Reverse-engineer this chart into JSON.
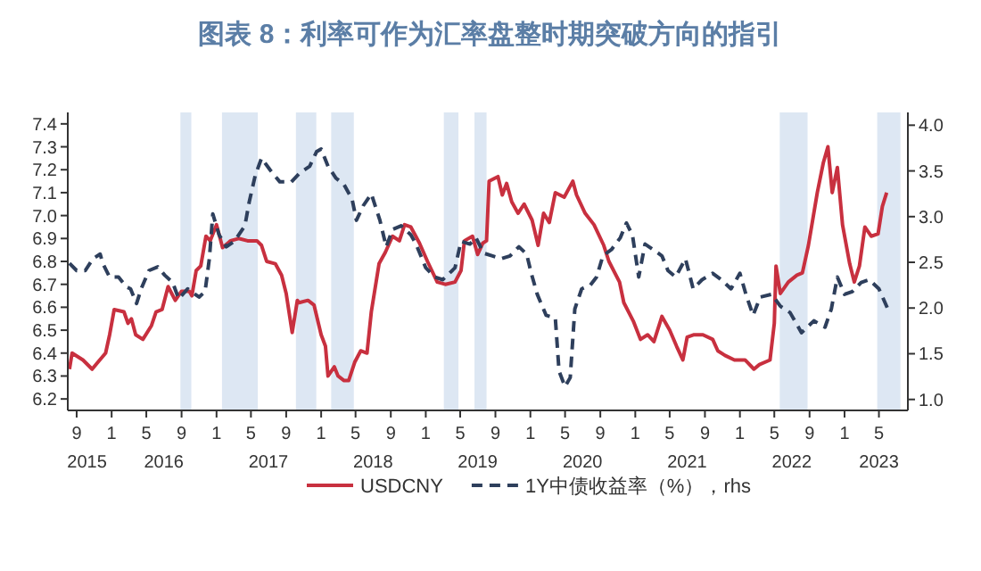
{
  "chart_data": {
    "type": "line",
    "title": "图表 8：利率可作为汇率盘整时期突破方向的指引",
    "xlim": [
      "2015-08-01",
      "2023-08-10"
    ],
    "xticks": [
      {
        "value": "2015-09-01",
        "label": "9"
      },
      {
        "value": "2016-01-01",
        "label": "1"
      },
      {
        "value": "2016-05-01",
        "label": "5"
      },
      {
        "value": "2016-09-01",
        "label": "9"
      },
      {
        "value": "2017-01-01",
        "label": "1"
      },
      {
        "value": "2017-05-01",
        "label": "5"
      },
      {
        "value": "2017-09-01",
        "label": "9"
      },
      {
        "value": "2018-01-01",
        "label": "1"
      },
      {
        "value": "2018-05-01",
        "label": "5"
      },
      {
        "value": "2018-09-01",
        "label": "9"
      },
      {
        "value": "2019-01-01",
        "label": "1"
      },
      {
        "value": "2019-05-01",
        "label": "5"
      },
      {
        "value": "2019-09-01",
        "label": "9"
      },
      {
        "value": "2020-01-01",
        "label": "1"
      },
      {
        "value": "2020-05-01",
        "label": "5"
      },
      {
        "value": "2020-09-01",
        "label": "9"
      },
      {
        "value": "2021-01-01",
        "label": "1"
      },
      {
        "value": "2021-05-01",
        "label": "5"
      },
      {
        "value": "2021-09-01",
        "label": "9"
      },
      {
        "value": "2022-01-01",
        "label": "1"
      },
      {
        "value": "2022-05-01",
        "label": "5"
      },
      {
        "value": "2022-09-01",
        "label": "9"
      },
      {
        "value": "2023-01-01",
        "label": "1"
      },
      {
        "value": "2023-05-01",
        "label": "5"
      }
    ],
    "x2lim": [
      "2015-08-01",
      "2023-08-10"
    ],
    "x2ticks": [
      {
        "value": "2015-10-07",
        "label": "2015"
      },
      {
        "value": "2016-07-01",
        "label": "2016"
      },
      {
        "value": "2017-07-01",
        "label": "2017"
      },
      {
        "value": "2018-07-01",
        "label": "2018"
      },
      {
        "value": "2019-07-01",
        "label": "2019"
      },
      {
        "value": "2020-07-01",
        "label": "2020"
      },
      {
        "value": "2021-07-01",
        "label": "2021"
      },
      {
        "value": "2022-07-01",
        "label": "2022"
      },
      {
        "value": "2023-05-01",
        "label": "2023"
      }
    ],
    "ylim": [
      6.15,
      7.45
    ],
    "yticks": [
      6.2,
      6.3,
      6.4,
      6.5,
      6.6,
      6.7,
      6.8,
      6.9,
      {
        "value": 7,
        "label": "7.0"
      },
      7.1,
      7.2,
      7.3,
      7.4
    ],
    "y2lim": [
      0.88,
      4.14
    ],
    "y2ticks": [
      {
        "value": 1,
        "label": "1.0"
      },
      1.5,
      {
        "value": 2,
        "label": "2.0"
      },
      2.5,
      {
        "value": 3,
        "label": "3.0"
      },
      3.5,
      {
        "value": 4,
        "label": "4.0"
      }
    ],
    "grid": false,
    "legend": "bottom",
    "bands": [
      {
        "axis": "x",
        "from": "2016-08-28",
        "to": "2016-10-05",
        "color": "#dde7f3"
      },
      {
        "axis": "x",
        "from": "2017-01-20",
        "to": "2017-05-25",
        "color": "#dde7f3"
      },
      {
        "axis": "x",
        "from": "2017-10-05",
        "to": "2017-12-15",
        "color": "#dde7f3"
      },
      {
        "axis": "x",
        "from": "2018-02-05",
        "to": "2018-04-25",
        "color": "#dde7f3"
      },
      {
        "axis": "x",
        "from": "2019-03-05",
        "to": "2019-04-25",
        "color": "#dde7f3"
      },
      {
        "axis": "x",
        "from": "2019-06-20",
        "to": "2019-08-01",
        "color": "#dde7f3"
      },
      {
        "axis": "x",
        "from": "2022-05-20",
        "to": "2022-08-25",
        "color": "#dde7f3"
      },
      {
        "axis": "x",
        "from": "2023-04-25",
        "to": "2023-07-15",
        "color": "#dde7f3"
      }
    ],
    "series": [
      {
        "name": "USDCNY",
        "color": "#c8303f",
        "line_style": "solid",
        "x": [
          "2015-08-07",
          "2015-08-16",
          "2015-09-23",
          "2015-10-25",
          "2015-11-14",
          "2015-12-11",
          "2015-12-25",
          "2016-01-10",
          "2016-02-13",
          "2016-02-27",
          "2016-03-10",
          "2016-03-25",
          "2016-04-19",
          "2016-05-19",
          "2016-06-04",
          "2016-06-25",
          "2016-07-16",
          "2016-08-10",
          "2016-09-01",
          "2016-09-28",
          "2016-10-07",
          "2016-10-22",
          "2016-11-07",
          "2016-11-25",
          "2016-12-10",
          "2017-01-01",
          "2017-01-22",
          "2017-02-19",
          "2017-03-19",
          "2017-04-19",
          "2017-05-22",
          "2017-06-07",
          "2017-06-25",
          "2017-07-25",
          "2017-08-16",
          "2017-09-01",
          "2017-09-22",
          "2017-10-10",
          "2017-10-16",
          "2017-11-16",
          "2017-12-07",
          "2018-01-01",
          "2018-01-16",
          "2018-01-25",
          "2018-02-16",
          "2018-03-01",
          "2018-03-22",
          "2018-04-07",
          "2018-04-28",
          "2018-05-19",
          "2018-06-10",
          "2018-06-25",
          "2018-07-22",
          "2018-08-13",
          "2018-09-07",
          "2018-10-01",
          "2018-10-19",
          "2018-11-10",
          "2018-12-10",
          "2019-01-07",
          "2019-02-10",
          "2019-03-10",
          "2019-04-13",
          "2019-05-04",
          "2019-05-16",
          "2019-06-13",
          "2019-07-01",
          "2019-07-19",
          "2019-08-01",
          "2019-08-10",
          "2019-09-10",
          "2019-09-25",
          "2019-10-10",
          "2019-10-28",
          "2019-11-19",
          "2019-12-10",
          "2020-01-07",
          "2020-01-28",
          "2020-02-16",
          "2020-03-07",
          "2020-03-28",
          "2020-04-28",
          "2020-05-28",
          "2020-06-10",
          "2020-07-10",
          "2020-08-10",
          "2020-09-13",
          "2020-10-01",
          "2020-11-07",
          "2020-11-22",
          "2020-12-25",
          "2021-01-19",
          "2021-02-13",
          "2021-03-07",
          "2021-04-04",
          "2021-05-01",
          "2021-05-25",
          "2021-06-16",
          "2021-07-01",
          "2021-07-25",
          "2021-08-25",
          "2021-09-28",
          "2021-10-16",
          "2021-11-10",
          "2021-12-13",
          "2022-01-19",
          "2022-02-19",
          "2022-03-10",
          "2022-04-16",
          "2022-05-01",
          "2022-05-07",
          "2022-05-22",
          "2022-06-19",
          "2022-07-19",
          "2022-08-07",
          "2022-08-28",
          "2022-09-28",
          "2022-10-19",
          "2022-11-04",
          "2022-11-19",
          "2022-12-07",
          "2022-12-25",
          "2023-01-19",
          "2023-02-04",
          "2023-02-22",
          "2023-03-13",
          "2023-04-04",
          "2023-04-28",
          "2023-05-13",
          "2023-05-28"
        ],
        "values": [
          6.33,
          6.4,
          6.37,
          6.33,
          6.36,
          6.4,
          6.48,
          6.59,
          6.58,
          6.53,
          6.55,
          6.48,
          6.46,
          6.52,
          6.58,
          6.59,
          6.69,
          6.63,
          6.67,
          6.67,
          6.65,
          6.76,
          6.78,
          6.91,
          6.89,
          6.96,
          6.86,
          6.89,
          6.9,
          6.89,
          6.89,
          6.87,
          6.8,
          6.79,
          6.74,
          6.66,
          6.49,
          6.63,
          6.62,
          6.63,
          6.61,
          6.48,
          6.43,
          6.3,
          6.34,
          6.3,
          6.28,
          6.28,
          6.36,
          6.41,
          6.4,
          6.58,
          6.79,
          6.84,
          6.91,
          6.89,
          6.96,
          6.95,
          6.88,
          6.8,
          6.71,
          6.7,
          6.71,
          6.76,
          6.89,
          6.91,
          6.83,
          6.88,
          6.89,
          7.15,
          7.17,
          7.09,
          7.14,
          7.06,
          7.01,
          7.05,
          6.98,
          6.87,
          7.01,
          6.97,
          7.1,
          7.08,
          7.15,
          7.09,
          7.01,
          6.96,
          6.87,
          6.8,
          6.71,
          6.62,
          6.54,
          6.46,
          6.48,
          6.45,
          6.56,
          6.5,
          6.43,
          6.37,
          6.47,
          6.48,
          6.48,
          6.46,
          6.41,
          6.39,
          6.37,
          6.37,
          6.33,
          6.35,
          6.37,
          6.53,
          6.78,
          6.66,
          6.71,
          6.74,
          6.75,
          6.87,
          7.1,
          7.23,
          7.3,
          7.1,
          7.21,
          6.96,
          6.79,
          6.71,
          6.78,
          6.95,
          6.91,
          6.92,
          7.04,
          7.1
        ]
      },
      {
        "name": "1Y中债收益率（%），rhs",
        "color": "#2e3f5c",
        "axis": "y2",
        "line_style": "dashed",
        "x": [
          "2015-08-07",
          "2015-09-01",
          "2015-10-01",
          "2015-10-28",
          "2015-11-22",
          "2015-12-01",
          "2015-12-25",
          "2016-01-25",
          "2016-02-22",
          "2016-03-07",
          "2016-03-28",
          "2016-04-13",
          "2016-05-10",
          "2016-06-10",
          "2016-07-04",
          "2016-08-01",
          "2016-08-22",
          "2016-09-22",
          "2016-11-01",
          "2016-11-22",
          "2016-12-07",
          "2016-12-19",
          "2017-01-10",
          "2017-02-04",
          "2017-03-04",
          "2017-04-10",
          "2017-04-25",
          "2017-05-16",
          "2017-06-07",
          "2017-07-07",
          "2017-08-10",
          "2017-09-19",
          "2017-10-19",
          "2017-11-22",
          "2017-12-16",
          "2018-01-01",
          "2018-01-25",
          "2018-02-22",
          "2018-03-22",
          "2018-04-19",
          "2018-05-04",
          "2018-05-28",
          "2018-06-25",
          "2018-07-25",
          "2018-08-16",
          "2018-09-07",
          "2018-10-07",
          "2018-11-10",
          "2018-11-28",
          "2019-01-01",
          "2019-02-01",
          "2019-03-01",
          "2019-04-13",
          "2019-05-04",
          "2019-06-04",
          "2019-06-25",
          "2019-07-22",
          "2019-08-22",
          "2019-09-22",
          "2019-10-22",
          "2019-11-22",
          "2019-12-19",
          "2020-01-04",
          "2020-01-25",
          "2020-02-25",
          "2020-03-28",
          "2020-04-10",
          "2020-05-01",
          "2020-05-19",
          "2020-06-04",
          "2020-06-28",
          "2020-07-28",
          "2020-08-19",
          "2020-09-10",
          "2020-10-10",
          "2020-11-10",
          "2020-12-01",
          "2020-12-22",
          "2021-01-13",
          "2021-02-04",
          "2021-03-04",
          "2021-04-04",
          "2021-04-25",
          "2021-05-22",
          "2021-06-25",
          "2021-07-22",
          "2021-08-22",
          "2021-09-28",
          "2021-10-28",
          "2021-12-01",
          "2022-01-01",
          "2022-01-22",
          "2022-02-16",
          "2022-03-13",
          "2022-04-22",
          "2022-05-22",
          "2022-06-25",
          "2022-08-04",
          "2022-09-16",
          "2022-10-25",
          "2022-11-16",
          "2022-12-07",
          "2023-01-01",
          "2023-01-28",
          "2023-02-28",
          "2023-03-28",
          "2023-05-01",
          "2023-06-01"
        ],
        "values": [
          2.49,
          2.41,
          2.41,
          2.54,
          2.59,
          2.49,
          2.34,
          2.34,
          2.23,
          2.21,
          2.05,
          2.21,
          2.41,
          2.45,
          2.36,
          2.28,
          2.1,
          2.21,
          2.12,
          2.18,
          2.54,
          3.03,
          2.8,
          2.67,
          2.73,
          2.9,
          3.16,
          3.45,
          3.64,
          3.51,
          3.38,
          3.38,
          3.48,
          3.55,
          3.71,
          3.74,
          3.55,
          3.42,
          3.35,
          3.19,
          2.96,
          3.12,
          3.25,
          2.96,
          2.67,
          2.86,
          2.9,
          2.8,
          2.7,
          2.44,
          2.34,
          2.31,
          2.44,
          2.73,
          2.7,
          2.77,
          2.6,
          2.57,
          2.54,
          2.57,
          2.67,
          2.59,
          2.38,
          2.15,
          1.92,
          1.89,
          1.31,
          1.14,
          1.24,
          1.99,
          2.21,
          2.25,
          2.34,
          2.57,
          2.64,
          2.77,
          2.93,
          2.8,
          2.34,
          2.7,
          2.64,
          2.57,
          2.41,
          2.34,
          2.54,
          2.21,
          2.31,
          2.38,
          2.31,
          2.21,
          2.38,
          2.15,
          1.92,
          2.12,
          2.15,
          2.02,
          1.95,
          1.73,
          1.86,
          1.79,
          1.99,
          2.34,
          2.15,
          2.18,
          2.28,
          2.31,
          2.21,
          1.99
        ]
      }
    ]
  }
}
